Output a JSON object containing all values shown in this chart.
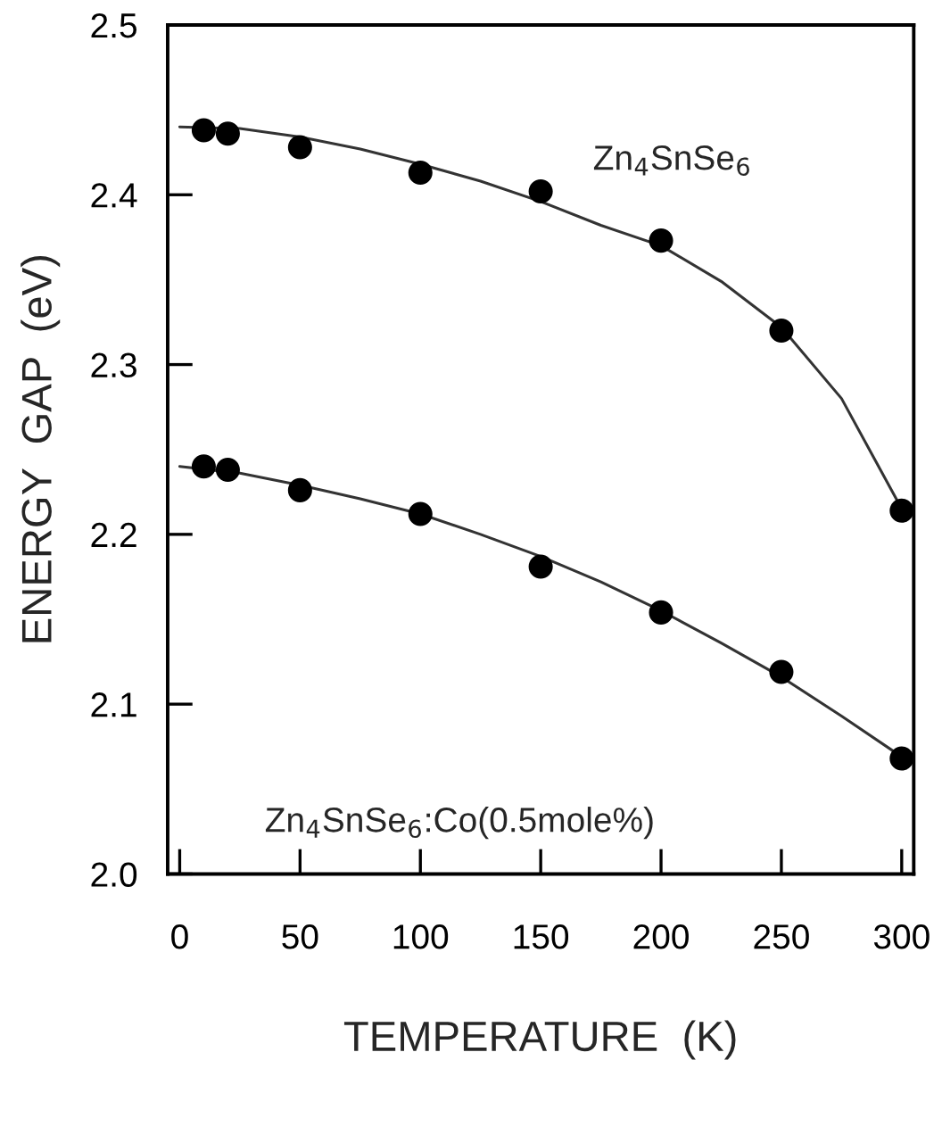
{
  "chart_data": {
    "type": "scatter",
    "xlabel": "TEMPERATURE  (K)",
    "ylabel": "ENERGY  GAP  (eV)",
    "xlim": [
      -5,
      305
    ],
    "xticks": [
      0,
      50,
      100,
      150,
      200,
      250,
      300
    ],
    "ylim": [
      2.0,
      2.5
    ],
    "yticks": [
      {
        "value": 2.0,
        "label": "2.0"
      },
      {
        "value": 2.1,
        "label": "2.1"
      },
      {
        "value": 2.2,
        "label": "2.2"
      },
      {
        "value": 2.3,
        "label": "2.3"
      },
      {
        "value": 2.4,
        "label": "2.4"
      },
      {
        "value": 2.5,
        "label": "2.5"
      }
    ],
    "grid": false,
    "legend": false,
    "marker": "circle",
    "series": [
      {
        "color": "#000000",
        "x": [
          10,
          20,
          50,
          100,
          150,
          200,
          250,
          300
        ],
        "values": [
          2.438,
          2.436,
          2.428,
          2.413,
          2.402,
          2.373,
          2.32,
          2.214
        ]
      },
      {
        "color": "#000000",
        "x": [
          10,
          20,
          50,
          100,
          150,
          200,
          250,
          300
        ],
        "values": [
          2.24,
          2.238,
          2.226,
          2.212,
          2.181,
          2.154,
          2.119,
          2.068
        ]
      },
      {
        "type": "line",
        "color": "#333333",
        "marker": "none",
        "x": [
          0,
          25,
          50,
          75,
          100,
          125,
          150,
          175,
          200,
          225,
          250,
          275,
          300
        ],
        "values": [
          2.44,
          2.439,
          2.434,
          2.427,
          2.418,
          2.408,
          2.396,
          2.382,
          2.37,
          2.349,
          2.322,
          2.28,
          2.215
        ]
      },
      {
        "type": "line",
        "color": "#333333",
        "marker": "none",
        "x": [
          0,
          25,
          50,
          75,
          100,
          125,
          150,
          175,
          200,
          225,
          250,
          275,
          300
        ],
        "values": [
          2.24,
          2.236,
          2.229,
          2.221,
          2.212,
          2.2,
          2.187,
          2.172,
          2.155,
          2.136,
          2.116,
          2.093,
          2.069
        ]
      }
    ],
    "annotations": [
      "Zn$_{4}$SnSe$_{6}$",
      "Zn$_{4}$SnSe$_{6}$:Co(0.5mole%)"
    ]
  }
}
